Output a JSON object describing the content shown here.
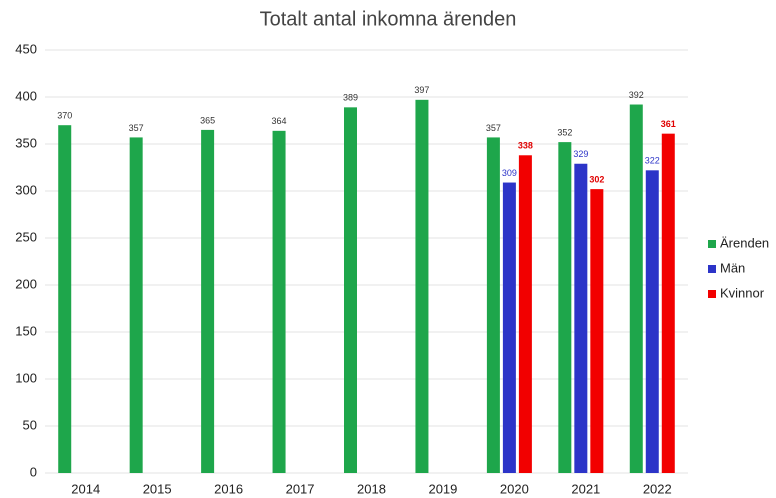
{
  "chart_data": {
    "type": "bar",
    "title": "Totalt antal inkomna ärenden",
    "categories": [
      "2014",
      "2015",
      "2016",
      "2017",
      "2018",
      "2019",
      "2020",
      "2021",
      "2022"
    ],
    "series": [
      {
        "name": "Ärenden",
        "color": "#1ea64b",
        "values": [
          370,
          357,
          365,
          364,
          389,
          397,
          357,
          352,
          392
        ]
      },
      {
        "name": "Män",
        "color": "#2c34c8",
        "values": [
          null,
          null,
          null,
          null,
          null,
          null,
          309,
          329,
          322
        ]
      },
      {
        "name": "Kvinnor",
        "color": "#f20000",
        "values": [
          null,
          null,
          null,
          null,
          null,
          null,
          338,
          302,
          361
        ]
      }
    ],
    "ylim": [
      0,
      450
    ],
    "yticks": [
      0,
      50,
      100,
      150,
      200,
      250,
      300,
      350,
      400,
      450
    ],
    "grid": true,
    "legend": "right"
  }
}
